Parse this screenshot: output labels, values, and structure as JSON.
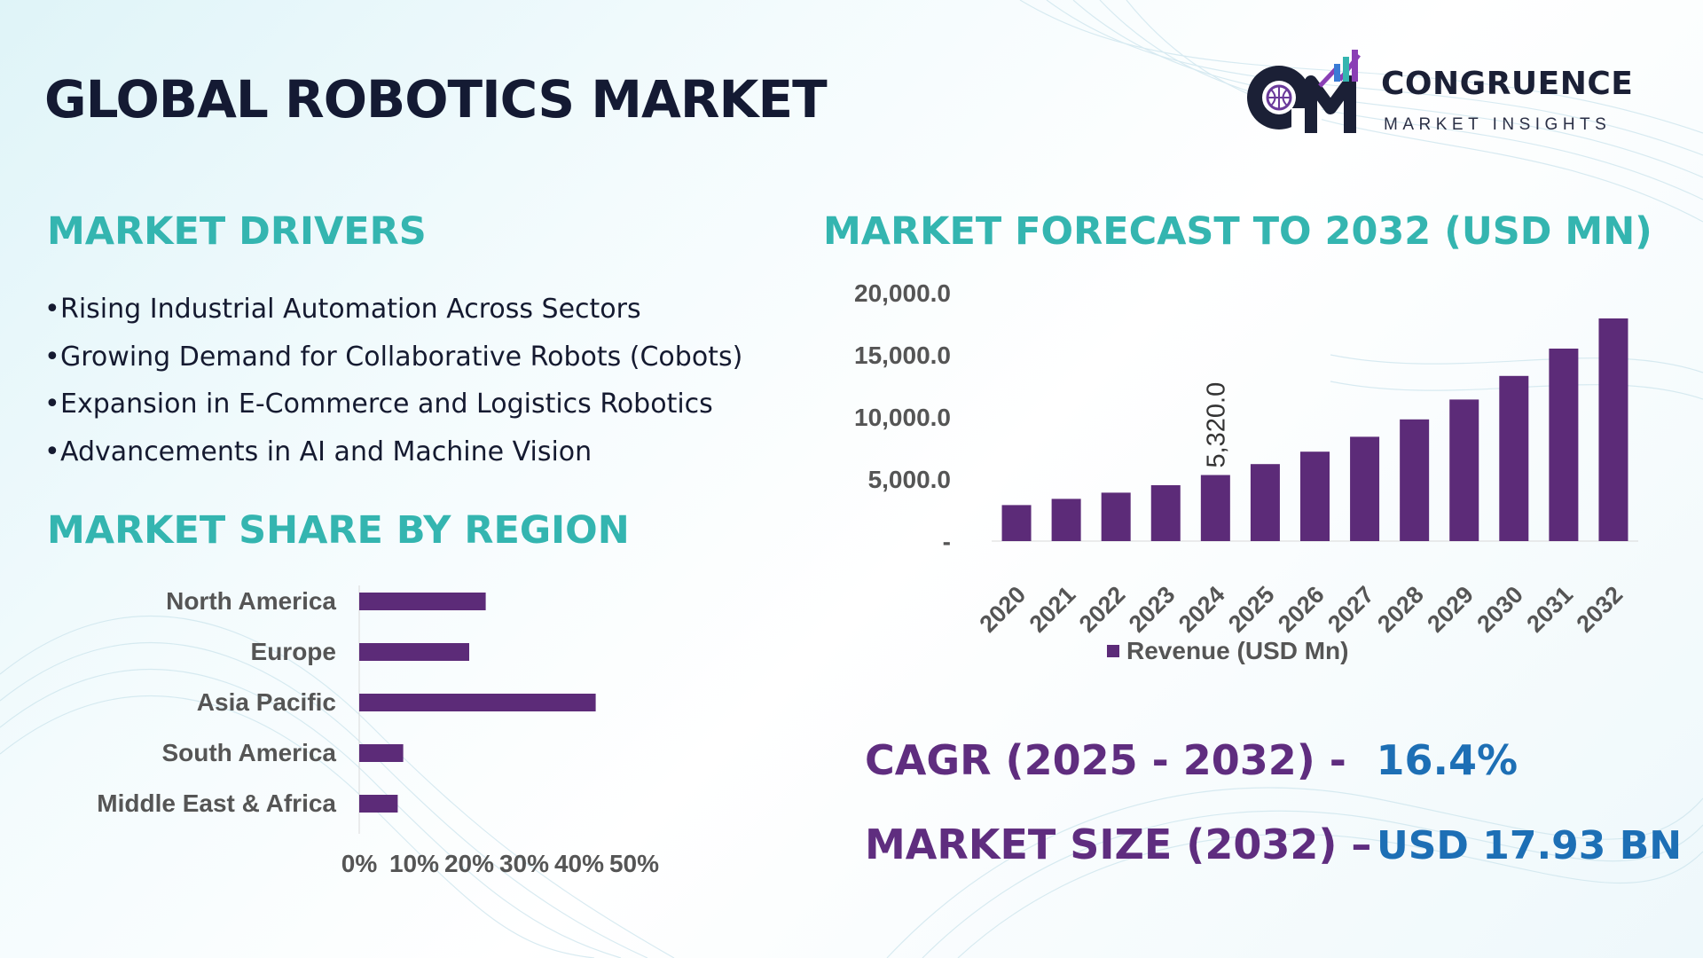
{
  "header": {
    "title": "GLOBAL ROBOTICS MARKET"
  },
  "logo": {
    "monogram": "CM",
    "name": "CONGRUENCE",
    "tagline": "MARKET INSIGHTS"
  },
  "drivers": {
    "heading": "MARKET DRIVERS",
    "items": [
      "Rising Industrial Automation Across Sectors",
      "Growing Demand for Collaborative Robots (Cobots)",
      "Expansion in E-Commerce and Logistics Robotics",
      "Advancements in AI and Machine Vision"
    ]
  },
  "region_section": {
    "heading": "MARKET SHARE BY REGION"
  },
  "forecast_section": {
    "heading": "MARKET FORECAST TO 2032 (USD MN)"
  },
  "kpis": {
    "cagr_label": "CAGR (2025 - 2032) -",
    "cagr_value": "16.4%",
    "size_label": "MARKET SIZE (2032) –",
    "size_value": "USD 17.93 BN"
  },
  "colors": {
    "bar": "#5c2b78",
    "heading": "#34b5b0",
    "title": "#141a33",
    "kpi_label": "#5f2d7f",
    "kpi_value": "#1d6fb5",
    "axis_text": "#555555"
  },
  "chart_data": [
    {
      "type": "bar",
      "orientation": "horizontal",
      "categories": [
        "North America",
        "Europe",
        "Asia Pacific",
        "South America",
        "Middle East & Africa"
      ],
      "values": [
        23,
        20,
        43,
        8,
        7
      ],
      "xlim": [
        0,
        50
      ],
      "tick_labels": [
        "0%",
        "10%",
        "20%",
        "30%",
        "40%",
        "50%"
      ],
      "grid": false
    },
    {
      "type": "bar",
      "orientation": "vertical",
      "categories": [
        "2020",
        "2021",
        "2022",
        "2023",
        "2024",
        "2025",
        "2026",
        "2027",
        "2028",
        "2029",
        "2030",
        "2031",
        "2032"
      ],
      "series": [
        {
          "name": "Revenue (USD Mn)",
          "values": [
            2900,
            3400,
            3900,
            4500,
            5320,
            6200,
            7200,
            8400,
            9800,
            11400,
            13300,
            15500,
            17930
          ]
        }
      ],
      "data_labels": [
        {
          "index": 4,
          "text": "5,320.0"
        }
      ],
      "ylim": [
        0,
        20000
      ],
      "y_tick_labels": [
        "-",
        "5,000.0",
        "10,000.0",
        "15,000.0",
        "20,000.0"
      ],
      "legend": "bottom",
      "grid": false
    }
  ]
}
